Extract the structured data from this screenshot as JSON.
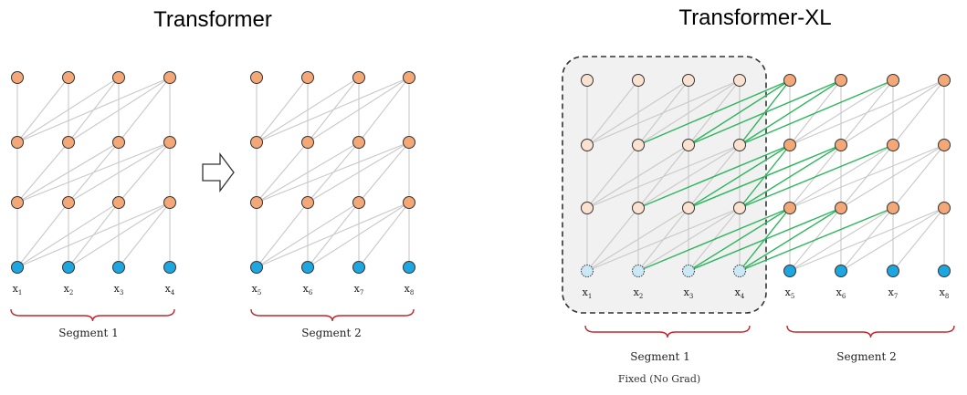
{
  "panels": {
    "left": {
      "title": "Transformer",
      "segment1_label": "Segment 1",
      "segment2_label": "Segment 2",
      "inputs_seg1": [
        "1",
        "2",
        "3",
        "4"
      ],
      "inputs_seg2": [
        "5",
        "6",
        "7",
        "8"
      ]
    },
    "right": {
      "title": "Transformer-XL",
      "segment1_label": "Segment 1",
      "segment2_label": "Segment 2",
      "fixed_note": "Fixed (No Grad)",
      "inputs_seg1": [
        "1",
        "2",
        "3",
        "4"
      ],
      "inputs_seg2": [
        "5",
        "6",
        "7",
        "8"
      ]
    }
  },
  "input_symbol": "x",
  "layers": [
    "input",
    "hidden-1",
    "hidden-2",
    "output"
  ],
  "colors": {
    "hidden_node": "#f4a878",
    "input_node": "#1ea6e0",
    "faded_hidden_node": "#fbe1cf",
    "faded_input_node": "#cbe8f7",
    "edge": "#c8c8c8",
    "cached_edge": "#2db55d",
    "brace": "#c0262d",
    "fixed_box_fill": "#f1f1f1",
    "fixed_box_border": "#333333",
    "node_outline": "#333333"
  },
  "icons": [
    "right-arrow-icon"
  ]
}
